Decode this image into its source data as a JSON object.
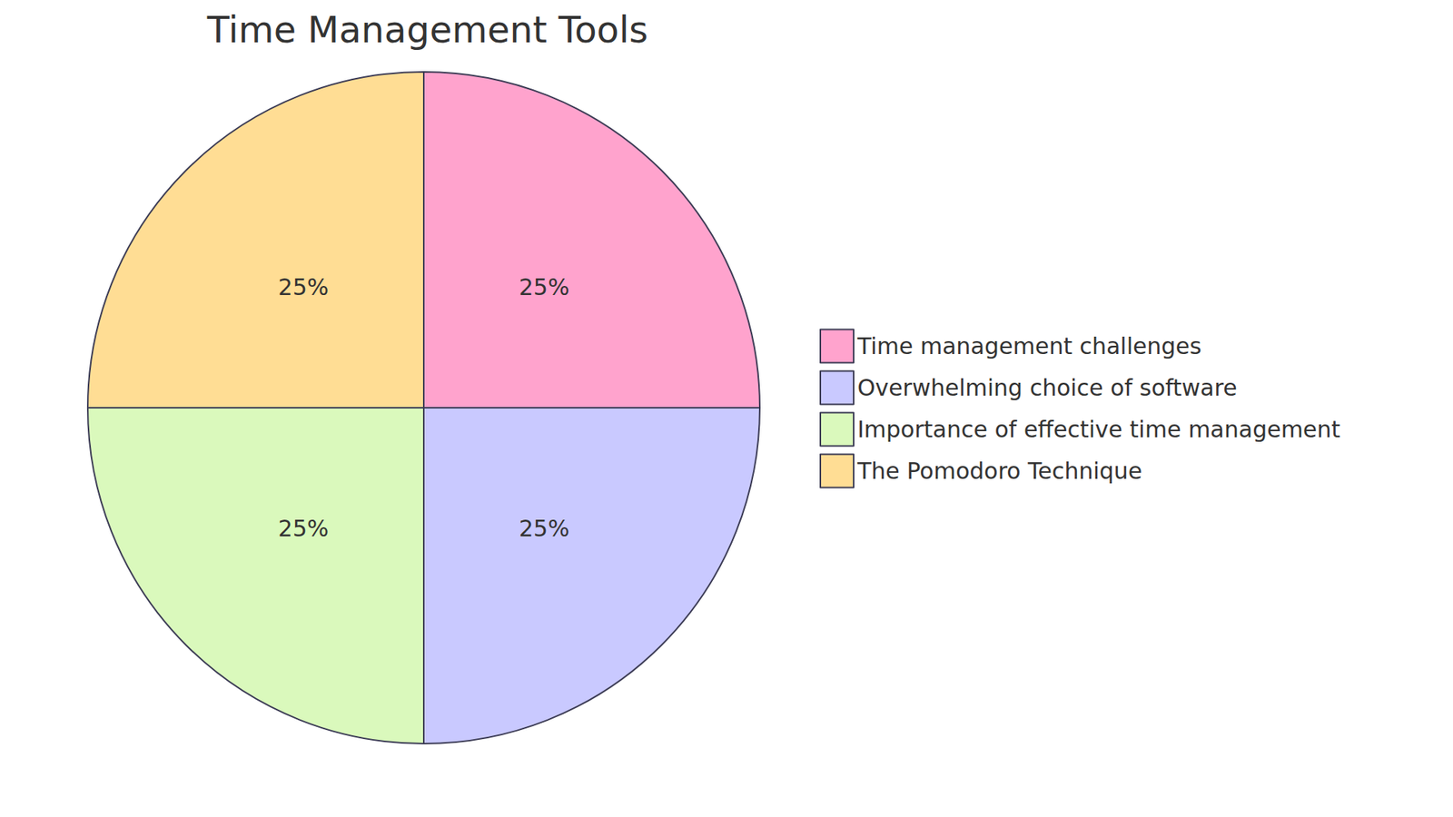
{
  "chart_data": {
    "type": "pie",
    "title": "Time Management Tools",
    "categories": [
      "Time management challenges",
      "Overwhelming choice of software",
      "Importance of effective time management",
      "The Pomodoro Technique"
    ],
    "values": [
      25,
      25,
      25,
      25
    ],
    "value_labels": [
      "25%",
      "25%",
      "25%",
      "25%"
    ],
    "colors": [
      "#ffa3cd",
      "#c9c9ff",
      "#daf9bc",
      "#ffdd94"
    ],
    "data_labels": true,
    "legend": "right"
  }
}
